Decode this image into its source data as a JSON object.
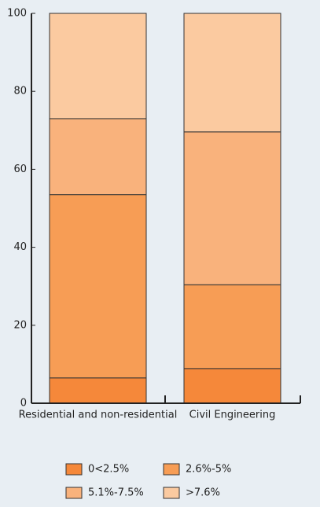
{
  "chart_data": {
    "type": "stacked_bar",
    "categories": [
      "Residential and non-residential",
      "Civil Engineering"
    ],
    "series": [
      {
        "name": "0<2.5%",
        "color": "#f5883a",
        "values": [
          6.5,
          8.9
        ]
      },
      {
        "name": "2.6%-5%",
        "color": "#f79d55",
        "values": [
          47,
          21.5
        ]
      },
      {
        "name": "5.1%-7.5%",
        "color": "#f9b27c",
        "values": [
          19.5,
          39.2
        ]
      },
      {
        "name": ">7.6%",
        "color": "#fbcaa0",
        "values": [
          27,
          30.4
        ]
      }
    ],
    "ylim": [
      0,
      100
    ],
    "yticks": [
      0,
      20,
      40,
      60,
      80,
      100
    ]
  }
}
